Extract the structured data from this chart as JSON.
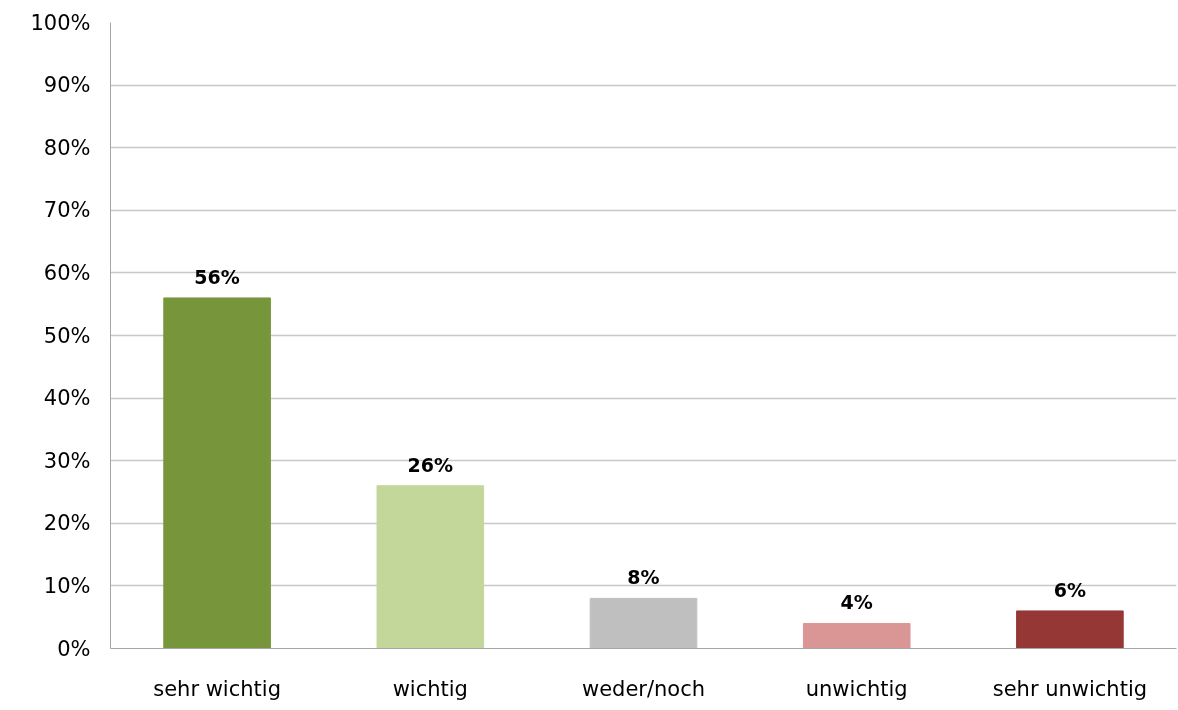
{
  "chart_data": {
    "type": "bar",
    "categories": [
      "sehr wichtig",
      "wichtig",
      "weder/noch",
      "unwichtig",
      "sehr unwichtig"
    ],
    "values": [
      56,
      26,
      8,
      4,
      6
    ],
    "colors": [
      "#77963b",
      "#c4d79b",
      "#bfbfbf",
      "#da9694",
      "#953735"
    ],
    "value_labels": [
      "56%",
      "26%",
      "8%",
      "4%",
      "6%"
    ],
    "ylim": [
      0,
      100
    ],
    "yticks": [
      {
        "value": 0,
        "label": "0%"
      },
      {
        "value": 10,
        "label": "10%"
      },
      {
        "value": 20,
        "label": "20%"
      },
      {
        "value": 30,
        "label": "30%"
      },
      {
        "value": 40,
        "label": "40%"
      },
      {
        "value": 50,
        "label": "50%"
      },
      {
        "value": 60,
        "label": "60%"
      },
      {
        "value": 70,
        "label": "70%"
      },
      {
        "value": 80,
        "label": "80%"
      },
      {
        "value": 90,
        "label": "90%"
      },
      {
        "value": 100,
        "label": "100%"
      }
    ],
    "grid": "y"
  }
}
